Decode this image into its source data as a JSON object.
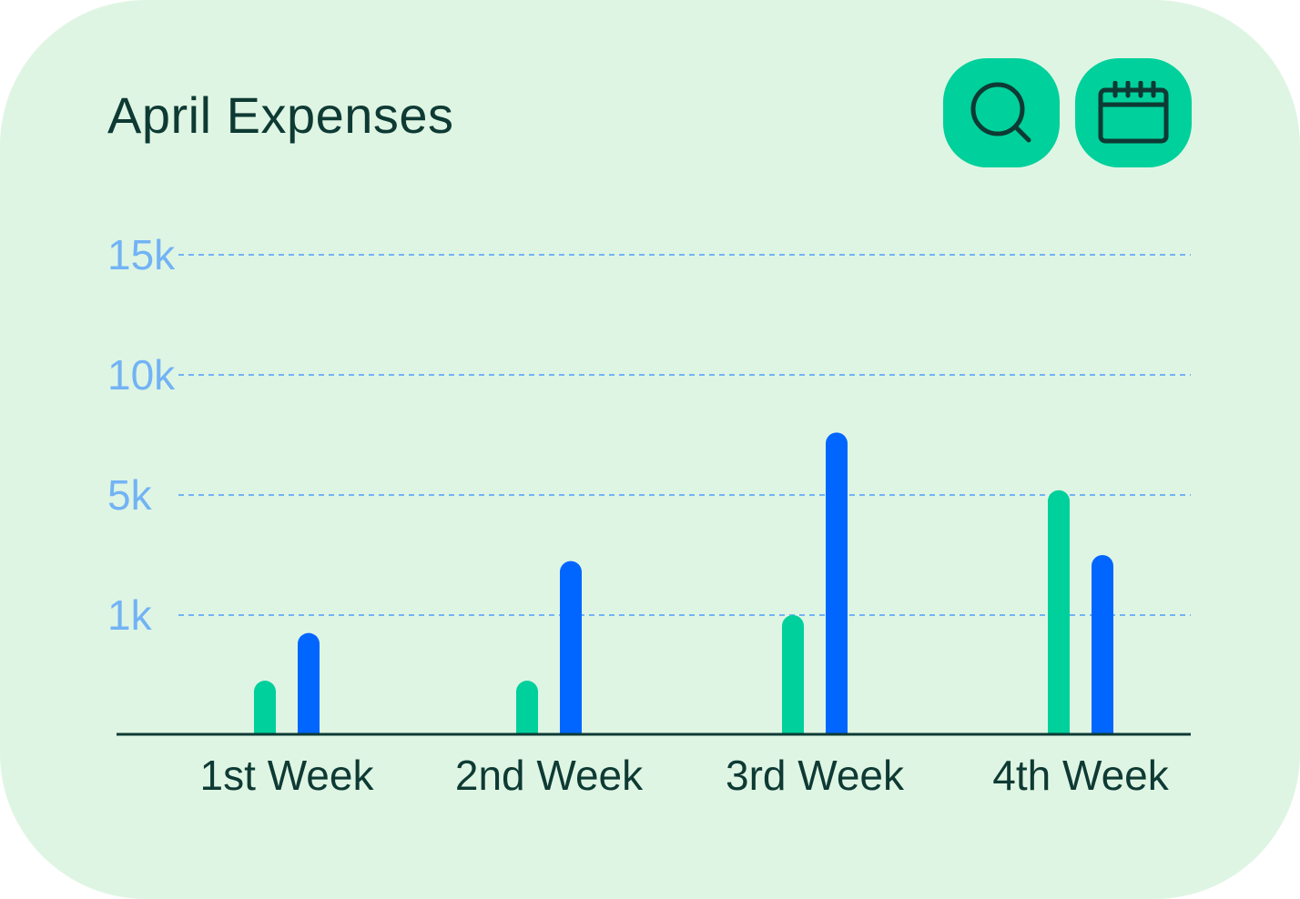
{
  "card": {
    "title": "April Expenses",
    "background": "#dff5e3"
  },
  "toolbar": {
    "search_icon": "search-icon",
    "calendar_icon": "calendar-icon",
    "button_color": "#00d09c"
  },
  "chart_data": {
    "type": "bar",
    "title": "April Expenses",
    "categories": [
      "1st Week",
      "2nd Week",
      "3rd Week",
      "4th Week"
    ],
    "y_ticks": [
      {
        "value": 1000,
        "label": "1k"
      },
      {
        "value": 5000,
        "label": "5k"
      },
      {
        "value": 10000,
        "label": "10k"
      },
      {
        "value": 15000,
        "label": "15k"
      }
    ],
    "y_scale": "piecewise (tick labels are evenly spaced)",
    "ylim": [
      0,
      15000
    ],
    "grid": true,
    "legend": "none",
    "series": [
      {
        "color": "#00d09c",
        "values": [
          450,
          450,
          1000,
          5200
        ]
      },
      {
        "color": "#0066ff",
        "values": [
          850,
          2800,
          7600,
          3000
        ]
      }
    ]
  }
}
